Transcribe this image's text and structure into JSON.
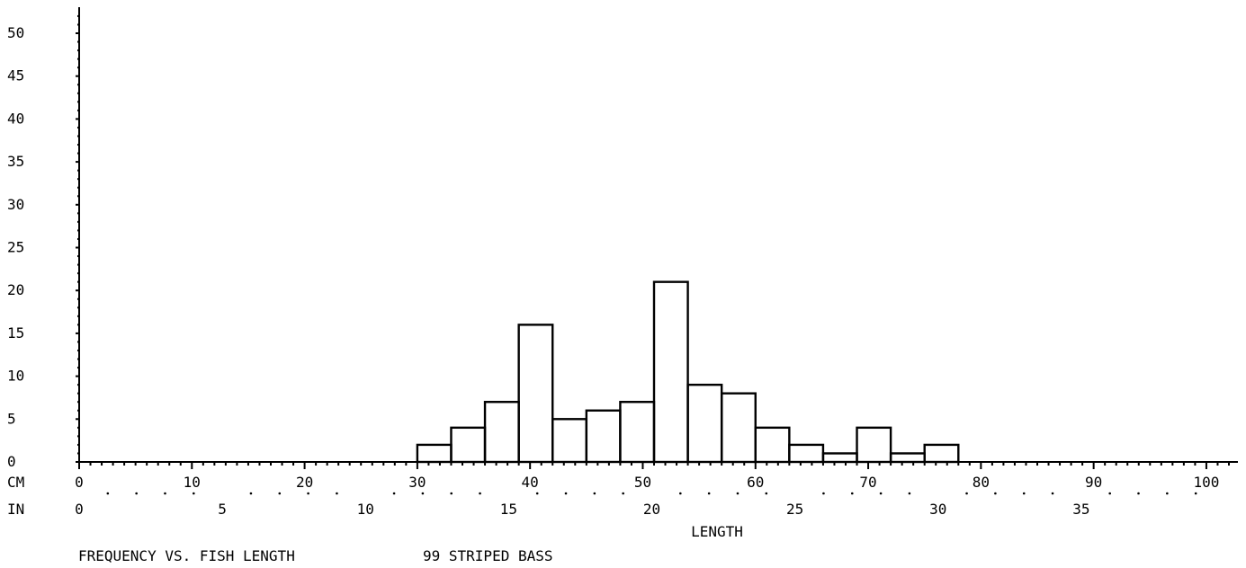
{
  "chart_data": {
    "type": "bar",
    "title": "FREQUENCY VS. FISH LENGTH",
    "subtitle": "99 STRIPED BASS",
    "xlabel": "LENGTH",
    "ylabel": "",
    "unit_labels": {
      "cm": "CM",
      "in": "IN"
    },
    "ylim": [
      0,
      52
    ],
    "y_ticks": [
      0,
      5,
      10,
      15,
      20,
      25,
      30,
      35,
      40,
      45,
      50
    ],
    "x_cm_ticks": [
      0,
      10,
      20,
      30,
      40,
      50,
      60,
      70,
      80,
      90,
      100
    ],
    "x_in_ticks": [
      0,
      5,
      10,
      15,
      20,
      25,
      30,
      35
    ],
    "xlim_cm": [
      0,
      102
    ],
    "bin_edges_cm": [
      30,
      33,
      36,
      39,
      42,
      45,
      48,
      51,
      54,
      57,
      60,
      63,
      66,
      69,
      72,
      75,
      78
    ],
    "values": [
      2,
      4,
      7,
      16,
      5,
      6,
      7,
      21,
      9,
      8,
      4,
      2,
      1,
      4,
      1,
      2
    ],
    "grid": false,
    "legend": "none",
    "line_color": "#000000",
    "background": "#ffffff"
  }
}
